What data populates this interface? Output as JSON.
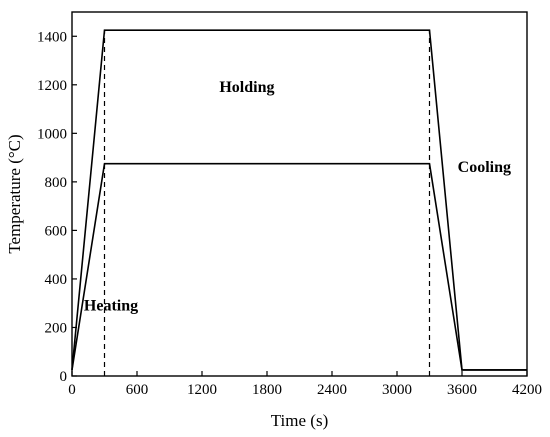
{
  "chart_data": {
    "type": "line",
    "xlabel": "Time (s)",
    "ylabel": "Temperature (°C)",
    "xlim": [
      0,
      4200
    ],
    "ylim": [
      0,
      1500
    ],
    "xticks": [
      0,
      600,
      1200,
      1800,
      2400,
      3000,
      3600,
      4200
    ],
    "yticks": [
      0,
      200,
      400,
      600,
      800,
      1000,
      1200,
      1400
    ],
    "grid": false,
    "legend": "none",
    "series": [
      {
        "x": [
          0,
          300,
          3300,
          3600,
          4200
        ],
        "y": [
          25,
          1425,
          1425,
          25,
          25
        ]
      },
      {
        "x": [
          0,
          300,
          3300,
          3600,
          4200
        ],
        "y": [
          25,
          875,
          875,
          25,
          25
        ]
      }
    ],
    "guides": [
      {
        "x": 300,
        "y": [
          0,
          1425
        ]
      },
      {
        "x": 3300,
        "y": [
          0,
          1425
        ]
      }
    ],
    "annotations": [
      {
        "text": "Heating",
        "x": 110,
        "y": 270
      },
      {
        "text": "Holding",
        "x": 1360,
        "y": 1170
      },
      {
        "text": "Cooling",
        "x": 3560,
        "y": 840
      }
    ]
  }
}
